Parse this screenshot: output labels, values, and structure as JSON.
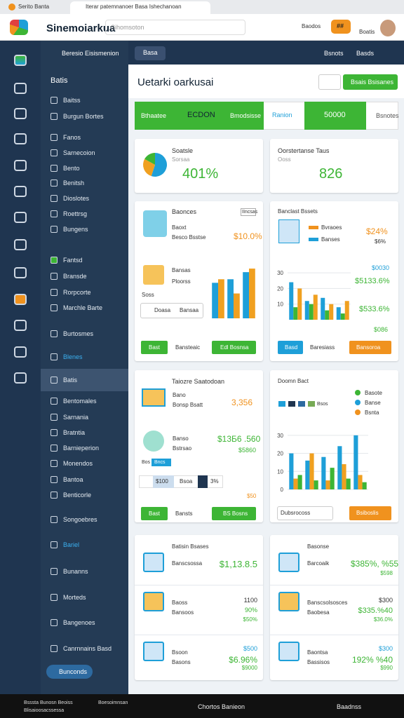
{
  "browser": {
    "tab": "Serito Banta",
    "tab_active": "Iterar patemnanoer Basa Ishechanoan",
    "app_name": "Sinemoiarkua",
    "search": "Sihomsoton",
    "header_link": "Baodos",
    "badge": "##",
    "profile": "Boatis"
  },
  "topbar": {
    "sidebar_title": "Beresio Eisismenion",
    "button": "Basa",
    "user": "Bsnots",
    "menu": "Basds"
  },
  "sidebar": {
    "section": "Batis",
    "items": [
      "Baitss",
      "Burgun Bortes",
      "Fanos",
      "Sarnecoion",
      "Bento",
      "Benitsh",
      "Dioslotes",
      "Roettrsg",
      "Bungens",
      "Fantsd",
      "Bransde",
      "Rorpcorte",
      "Marchle Barte",
      "Burtosmes",
      "Blenes",
      "Batis",
      "Bentomales",
      "Sarnania",
      "Bratntia",
      "Barnieperion",
      "Monendos",
      "Bantoa",
      "Benticorle",
      "Songoebres",
      "Bariel",
      "Bunanns",
      "Morteds",
      "Bangenoes",
      "Canrnnains Basd"
    ],
    "button": "Bunconds"
  },
  "page": {
    "title": "Uetarki oarkusai",
    "action": "Bsais Bsisanes"
  },
  "tabs": [
    "Bthaatee",
    "ECDON",
    "Bmodsisse",
    "Ranion",
    "50000",
    "Bsnotes"
  ],
  "cards": {
    "c1": {
      "title": "Soatsle",
      "sub": "Sorsaa",
      "value": "401%"
    },
    "c2": {
      "title": "Oorstertanse Taus",
      "sub": "Ooss",
      "value": "826"
    },
    "c3": {
      "title": "Baonces",
      "tag": "IIncsas",
      "row1": "Baoxt",
      "row1_sub": "Besco Bsstse",
      "row1_value": "$10.0%",
      "row2": "Bansas",
      "row2_sub": "Ploorss",
      "label": "Soss",
      "select": "Doasa",
      "select2": "Bansaa",
      "btn": "Bast",
      "link": "Bansteaic",
      "btn2": "Edl Bosnsa"
    },
    "c4": {
      "title": "Banclast Bssets",
      "legend1": "Bvraoes",
      "legend2": "Banses",
      "v1": "$24%",
      "v2": "$6%",
      "v3": "$0030",
      "v4": "$5133.6%",
      "v5": "$533.6%",
      "v6": "$086",
      "btn": "Basd",
      "link": "Baresiass",
      "btn2": "Bansoroa"
    },
    "c5": {
      "title": "Taiozre Saatodoan",
      "row1": "Bano",
      "row1_sub": "Bonsp Bsatt",
      "row1_value": "3,356",
      "row2": "Banso",
      "row2_sub": "Bstrsao",
      "row2_value": "$13Б6 .560",
      "row2_value2": "$5860",
      "chip1": "Bos",
      "chip2": "Bncs",
      "page1": "$100",
      "page2": "Bsoa",
      "page3": "3%",
      "foot": "$50",
      "btn": "Bast",
      "link": "Bansts",
      "btn2": "BS Bosns"
    },
    "c6": {
      "title": "Doomn Bact",
      "legend": [
        "Basote",
        "Banse",
        "Bsnta"
      ],
      "chips": "Bsos",
      "select": "Dubsrocoss",
      "btn": "Bsiboslis"
    },
    "c7": {
      "title": "Batisin Bsases",
      "r1": "Banscsossa",
      "r1v": "$1,13.8.5",
      "r2": "Baoss",
      "r2s": "Bansoos",
      "r2v": "1100",
      "r2v2": "90%",
      "r2v3": "$50%",
      "r3": "Bsoon",
      "r3s": "Basons",
      "r3v": "$500",
      "r3v2": "$6.96%",
      "r3v3": "$9000"
    },
    "c8": {
      "title": "Basonse",
      "r1": "Barcoaik",
      "r1v": "$385%, %55",
      "r1v2": "$598",
      "r2": "Banscsolsosces",
      "r2s": "Baobesa",
      "r2v": "$300",
      "r2v2": "$335.%40",
      "r2v3": "$36.0%",
      "r3": "Baontsa",
      "r3s": "Bassisos",
      "r3v": "$300",
      "r3v2": "192%  %40",
      "r3v3": "$990"
    }
  },
  "charts": {
    "pie": {
      "type": "pie",
      "values": [
        55,
        28,
        17
      ],
      "colors": [
        "#1e9fd8",
        "#f0a020",
        "#3db535"
      ]
    },
    "c3": {
      "type": "bar",
      "ylim": [
        0,
        30
      ],
      "series": [
        {
          "color": "#1e9fd8",
          "values": [
            20,
            22,
            26
          ]
        },
        {
          "color": "#f0a020",
          "values": [
            22,
            14,
            28
          ]
        }
      ]
    },
    "c4": {
      "type": "bar",
      "ylim": [
        0,
        35
      ],
      "yticks": [
        10,
        20,
        30
      ],
      "series": [
        {
          "color": "#1e9fd8",
          "values": [
            24,
            12,
            14,
            8
          ]
        },
        {
          "color": "#3db535",
          "values": [
            8,
            10,
            6,
            4
          ]
        },
        {
          "color": "#f0a020",
          "values": [
            20,
            16,
            10,
            12
          ]
        }
      ]
    },
    "c6": {
      "type": "bar",
      "ylim": [
        0,
        35
      ],
      "yticks": [
        0,
        10,
        20,
        30
      ],
      "series": [
        {
          "color": "#1e9fd8",
          "values": [
            20,
            16,
            18,
            24,
            30
          ]
        },
        {
          "color": "#f0a020",
          "values": [
            6,
            20,
            5,
            14,
            8
          ]
        },
        {
          "color": "#3db535",
          "values": [
            8,
            5,
            12,
            6,
            4
          ]
        }
      ]
    }
  },
  "taskbar": {
    "left": "Bsssta Bunosn Beoiss",
    "left2": "Blisaioosacssessa",
    "mid": "Boesoimnsan",
    "center": "Chortos Banieon",
    "right": "Baadnss"
  }
}
